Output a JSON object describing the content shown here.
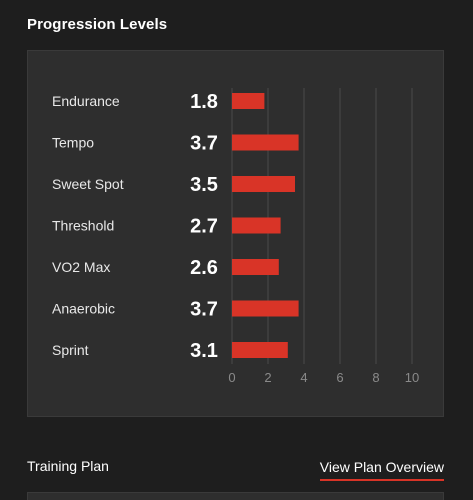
{
  "section": {
    "title": "Progression Levels"
  },
  "colors": {
    "bar": "#d93427",
    "accent": "#d93427",
    "background": "#1e1e1e",
    "card": "#2e2e2e",
    "grid": "#4a4a4a",
    "tick_text": "#8a8a8a"
  },
  "chart_data": {
    "type": "bar",
    "orientation": "horizontal",
    "categories": [
      "Endurance",
      "Tempo",
      "Sweet Spot",
      "Threshold",
      "VO2 Max",
      "Anaerobic",
      "Sprint"
    ],
    "values": [
      1.8,
      3.7,
      3.5,
      2.7,
      2.6,
      3.7,
      3.1
    ],
    "value_labels": [
      "1.8",
      "3.7",
      "3.5",
      "2.7",
      "2.6",
      "3.7",
      "3.1"
    ],
    "x_ticks": [
      "0",
      "2",
      "4",
      "6",
      "8",
      "10"
    ],
    "xlim": [
      0,
      10
    ],
    "grid": true,
    "title": "",
    "xlabel": "",
    "ylabel": ""
  },
  "footer": {
    "title": "Training Plan",
    "link_label": "View Plan Overview"
  }
}
